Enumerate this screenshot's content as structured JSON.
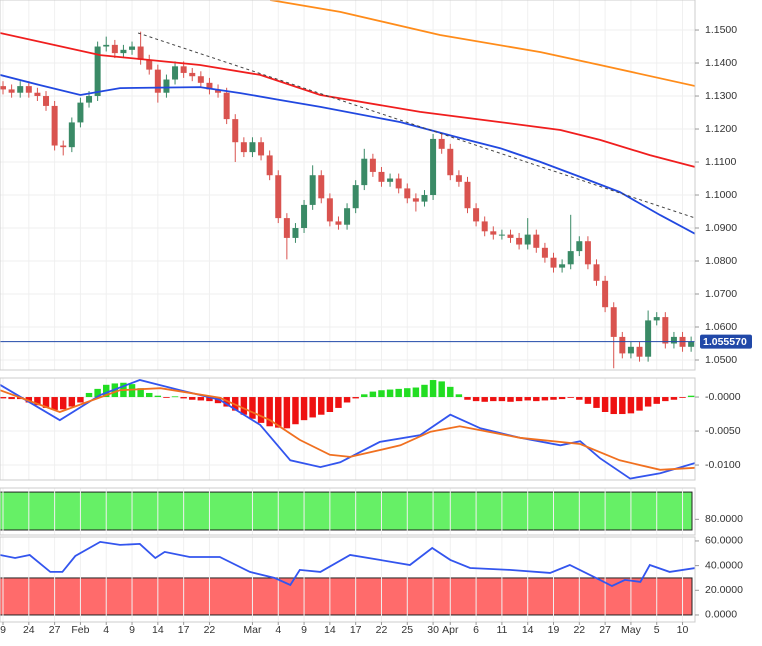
{
  "chart_data": [
    {
      "type": "candlestick",
      "xlim": [
        -0.35,
        80.45
      ],
      "ylim": [
        1.04697,
        1.1591
      ],
      "yticks": [
        {
          "value": 1.15,
          "label": "1.1500"
        },
        {
          "value": 1.14,
          "label": "1.1400"
        },
        {
          "value": 1.13,
          "label": "1.1300"
        },
        {
          "value": 1.12,
          "label": "1.1200"
        },
        {
          "value": 1.11,
          "label": "1.1100"
        },
        {
          "value": 1.1,
          "label": "1.1000"
        },
        {
          "value": 1.09,
          "label": "1.0900"
        },
        {
          "value": 1.08,
          "label": "1.0800"
        },
        {
          "value": 1.07,
          "label": "1.0700"
        },
        {
          "value": 1.06,
          "label": "1.0600"
        },
        {
          "value": 1.05,
          "label": "1.0500"
        }
      ],
      "grid": true,
      "up_color": "#3a8a66",
      "down_color": "#d9534f",
      "x": [
        0,
        1,
        2,
        3,
        4,
        5,
        6,
        7,
        8,
        9,
        10,
        11,
        12,
        13,
        14,
        15,
        16,
        17,
        18,
        19,
        20,
        21,
        22,
        23,
        24,
        25,
        26,
        27,
        28,
        29,
        30,
        31,
        32,
        33,
        34,
        35,
        36,
        37,
        38,
        39,
        40,
        41,
        42,
        43,
        44,
        45,
        46,
        47,
        48,
        49,
        50,
        51,
        52,
        53,
        54,
        55,
        56,
        57,
        58,
        59,
        60,
        61,
        62,
        63,
        64,
        65,
        66,
        67,
        68,
        69,
        70,
        71,
        72,
        73,
        74,
        75,
        76,
        77,
        78,
        79,
        80
      ],
      "open": [
        1.133,
        1.132,
        1.131,
        1.133,
        1.131,
        1.13,
        1.127,
        1.115,
        1.1145,
        1.122,
        1.128,
        1.13,
        1.145,
        1.1455,
        1.143,
        1.144,
        1.145,
        1.141,
        1.138,
        1.131,
        1.135,
        1.139,
        1.137,
        1.136,
        1.134,
        1.132,
        1.131,
        1.123,
        1.116,
        1.113,
        1.116,
        1.112,
        1.106,
        1.093,
        1.087,
        1.09,
        1.097,
        1.106,
        1.099,
        1.092,
        1.091,
        1.096,
        1.103,
        1.111,
        1.107,
        1.104,
        1.105,
        1.102,
        1.099,
        1.098,
        1.1,
        1.117,
        1.114,
        1.106,
        1.104,
        1.096,
        1.092,
        1.089,
        1.088,
        1.088,
        1.087,
        1.085,
        1.088,
        1.084,
        1.081,
        1.078,
        1.079,
        1.083,
        1.086,
        1.079,
        1.074,
        1.066,
        1.057,
        1.052,
        1.054,
        1.051,
        1.062,
        1.063,
        1.055,
        1.057,
        1.054
      ],
      "high": [
        1.1345,
        1.1335,
        1.1345,
        1.1345,
        1.1325,
        1.1315,
        1.1285,
        1.1165,
        1.1235,
        1.1295,
        1.1315,
        1.1465,
        1.148,
        1.147,
        1.1455,
        1.1465,
        1.1495,
        1.1425,
        1.1395,
        1.1365,
        1.1405,
        1.1405,
        1.1385,
        1.1375,
        1.1355,
        1.1335,
        1.1325,
        1.1245,
        1.1175,
        1.1175,
        1.1175,
        1.1135,
        1.1075,
        1.0945,
        1.0915,
        1.0985,
        1.109,
        1.1075,
        1.1005,
        1.0935,
        1.0975,
        1.1045,
        1.114,
        1.1125,
        1.1085,
        1.1065,
        1.1065,
        1.1035,
        1.1005,
        1.1015,
        1.1185,
        1.1185,
        1.1155,
        1.1075,
        1.1055,
        1.0975,
        1.0935,
        1.0905,
        1.0895,
        1.0895,
        1.0885,
        1.093,
        1.0895,
        1.0855,
        1.0825,
        1.0805,
        1.094,
        1.0875,
        1.0875,
        1.0805,
        1.0755,
        1.0675,
        1.0585,
        1.0555,
        1.0555,
        1.065,
        1.0645,
        1.0645,
        1.0585,
        1.0585,
        1.0571
      ],
      "low": [
        1.1305,
        1.1295,
        1.1295,
        1.1295,
        1.1285,
        1.1255,
        1.1135,
        1.112,
        1.113,
        1.1205,
        1.1265,
        1.1285,
        1.1435,
        1.1415,
        1.1415,
        1.1425,
        1.1395,
        1.1365,
        1.128,
        1.1295,
        1.1335,
        1.1355,
        1.1345,
        1.1325,
        1.1305,
        1.1295,
        1.1215,
        1.11,
        1.1115,
        1.1115,
        1.1105,
        1.1045,
        1.0915,
        1.0805,
        1.0855,
        1.0885,
        1.0955,
        1.0975,
        1.0905,
        1.0895,
        1.0895,
        1.0945,
        1.1015,
        1.1055,
        1.1025,
        1.1025,
        1.1005,
        1.0975,
        1.095,
        1.0965,
        1.0985,
        1.1125,
        1.1045,
        1.1025,
        1.0945,
        1.0905,
        1.0875,
        1.0865,
        1.0865,
        1.0855,
        1.0835,
        1.0835,
        1.0825,
        1.0795,
        1.0765,
        1.0765,
        1.0775,
        1.0815,
        1.0775,
        1.0725,
        1.0645,
        1.0475,
        1.0505,
        1.0505,
        1.0495,
        1.0495,
        1.0605,
        1.0535,
        1.0535,
        1.0525,
        1.0525
      ],
      "close": [
        1.132,
        1.131,
        1.133,
        1.131,
        1.13,
        1.127,
        1.115,
        1.1145,
        1.122,
        1.128,
        1.13,
        1.145,
        1.1455,
        1.143,
        1.144,
        1.145,
        1.141,
        1.138,
        1.131,
        1.135,
        1.139,
        1.137,
        1.136,
        1.134,
        1.132,
        1.131,
        1.123,
        1.116,
        1.113,
        1.116,
        1.112,
        1.106,
        1.093,
        1.087,
        1.09,
        1.097,
        1.106,
        1.099,
        1.092,
        1.091,
        1.096,
        1.103,
        1.111,
        1.107,
        1.104,
        1.105,
        1.102,
        1.099,
        1.098,
        1.1,
        1.117,
        1.114,
        1.106,
        1.104,
        1.096,
        1.092,
        1.089,
        1.088,
        1.088,
        1.087,
        1.085,
        1.088,
        1.084,
        1.081,
        1.078,
        1.079,
        1.083,
        1.086,
        1.079,
        1.074,
        1.066,
        1.057,
        1.052,
        1.054,
        1.051,
        1.062,
        1.063,
        1.055,
        1.057,
        1.054,
        1.0556
      ],
      "series": [
        {
          "color": "#f01e1e",
          "x": [
            -0.35,
            11.3,
            22.9,
            29.9,
            36.9,
            48.5,
            57.8,
            64.8,
            69.4,
            75.2,
            80.5
          ],
          "values": [
            1.1491,
            1.1424,
            1.1394,
            1.1364,
            1.1303,
            1.1252,
            1.1221,
            1.1197,
            1.1167,
            1.1121,
            1.1085
          ]
        },
        {
          "color": "#2148e0",
          "x": [
            -0.35,
            4.3,
            9,
            13.6,
            22.9,
            27.6,
            32.2,
            36.9,
            46.2,
            53.1,
            57.8,
            62.5,
            67.1,
            71.7,
            76.4,
            80.5
          ],
          "values": [
            1.1364,
            1.1333,
            1.1303,
            1.1324,
            1.1327,
            1.1309,
            1.1288,
            1.1267,
            1.1221,
            1.1173,
            1.1142,
            1.11,
            1.1055,
            1.1009,
            1.0939,
            1.0882
          ]
        },
        {
          "color": "#ff8c1a",
          "x": [
            31.05,
            39.2,
            50.8,
            62.5,
            69.4,
            80.5
          ],
          "values": [
            1.1591,
            1.1555,
            1.1485,
            1.1433,
            1.1394,
            1.133
          ]
        },
        {
          "color": "#444444",
          "dash": true,
          "x": [
            15.7,
            80.5
          ],
          "values": [
            1.1491,
            1.093
          ]
        }
      ],
      "last_price": {
        "value": 1.05557,
        "label": "1.055570",
        "color": "#2148a8"
      }
    },
    {
      "type": "macd",
      "xlim": [
        -0.35,
        80.45
      ],
      "ylim": [
        -0.0122,
        0.0028
      ],
      "yticks": [
        {
          "value": 0,
          "label": "-0.0000"
        },
        {
          "value": -0.005,
          "label": "-0.0050"
        },
        {
          "value": -0.01,
          "label": "-0.0100"
        }
      ],
      "grid": true,
      "positive_color": "#22dd22",
      "negative_color": "#ee1111",
      "histogram": [
        -0.0002,
        -0.0003,
        -0.0003,
        -0.0008,
        -0.0012,
        -0.0016,
        -0.0019,
        -0.0018,
        -0.0014,
        -0.0008,
        0.0006,
        0.0012,
        0.0018,
        0.002,
        0.0021,
        0.0019,
        0.0013,
        0.0006,
        0.0002,
        -0.0001,
        0.0001,
        -0.0002,
        -0.0004,
        -0.0005,
        -0.0006,
        -0.0009,
        -0.0014,
        -0.002,
        -0.0026,
        -0.0032,
        -0.0038,
        -0.0043,
        -0.0045,
        -0.0046,
        -0.004,
        -0.0034,
        -0.003,
        -0.0026,
        -0.0022,
        -0.0016,
        -0.0008,
        -0.0002,
        0.0004,
        0.0008,
        0.001,
        0.0011,
        0.0012,
        0.0013,
        0.0014,
        0.0018,
        0.0025,
        0.0023,
        0.0015,
        0.0004,
        -0.0004,
        -0.0006,
        -0.0007,
        -0.0006,
        -0.0006,
        -0.0007,
        -0.0006,
        -0.0005,
        -0.0006,
        -0.0005,
        -0.0004,
        -0.0003,
        -0.0001,
        -0.0004,
        -0.001,
        -0.0016,
        -0.0022,
        -0.0025,
        -0.0025,
        -0.0024,
        -0.002,
        -0.0014,
        -0.001,
        -0.0006,
        -0.0004,
        -0.0001,
        0.0002
      ],
      "series": [
        {
          "color": "#3355ee",
          "x": [
            -0.35,
            6.6,
            11.3,
            15.9,
            20.6,
            25.2,
            29.9,
            33.4,
            36.9,
            39.2,
            43.8,
            48.5,
            52,
            55.5,
            60.1,
            64.8,
            67.1,
            69.4,
            72.9,
            76.4,
            80.5
          ],
          "values": [
            0.0018,
            -0.0034,
            0.0003,
            0.0025,
            0.001,
            -0.0004,
            -0.0041,
            -0.0093,
            -0.0103,
            -0.0096,
            -0.0066,
            -0.0056,
            -0.0026,
            -0.0046,
            -0.006,
            -0.0071,
            -0.0065,
            -0.009,
            -0.012,
            -0.0112,
            -0.0097
          ]
        },
        {
          "color": "#f07020",
          "x": [
            -0.35,
            6.6,
            13.6,
            18.3,
            25.2,
            31.05,
            34.5,
            38,
            40.35,
            46.2,
            49.7,
            53.1,
            60.1,
            67.1,
            71.7,
            76.4,
            80.5
          ],
          "values": [
            0.001,
            -0.0022,
            0.001,
            0.0013,
            -0.0001,
            -0.0034,
            -0.0063,
            -0.0085,
            -0.0088,
            -0.0071,
            -0.0051,
            -0.0043,
            -0.006,
            -0.0069,
            -0.0093,
            -0.0107,
            -0.0104
          ]
        }
      ]
    },
    {
      "type": "band",
      "xlim": [
        -0.35,
        80.45
      ],
      "ylim": [
        70,
        100
      ],
      "yticks": [
        {
          "value": 80,
          "label": "80.0000"
        }
      ],
      "bands": [
        {
          "range": [
            73.2,
            97.4
          ],
          "color": "#66f066"
        }
      ]
    },
    {
      "type": "line",
      "xlim": [
        -0.35,
        80.45
      ],
      "ylim": [
        -5.7,
        63.2
      ],
      "yticks": [
        {
          "value": 60,
          "label": "60.0000"
        },
        {
          "value": 40,
          "label": "40.0000"
        },
        {
          "value": 20,
          "label": "20.0000"
        },
        {
          "value": 0,
          "label": "0.0000"
        }
      ],
      "bands": [
        {
          "range": [
            0,
            30
          ],
          "color": "#ff6b6b"
        }
      ],
      "series": [
        {
          "color": "#3355ee",
          "x": [
            -0.35,
            1.4,
            3.1,
            5.5,
            6.9,
            8.4,
            11.3,
            13.6,
            15.9,
            17.7,
            18.8,
            21.7,
            25.2,
            28.7,
            31.6,
            33.4,
            34.5,
            36.9,
            40.35,
            43.8,
            47.3,
            49.9,
            52,
            54.3,
            58.9,
            63.6,
            65.9,
            69.4,
            70.8,
            72.3,
            74.1,
            75.2,
            77.5,
            80.5
          ],
          "values": [
            48.6,
            46.2,
            48.6,
            34.9,
            34.9,
            47.8,
            59.2,
            56.8,
            57.6,
            46.2,
            51.1,
            47,
            47,
            34.9,
            30,
            24.3,
            36.5,
            34.9,
            48.6,
            44.6,
            40.5,
            54.3,
            44.6,
            38.1,
            36.5,
            34.1,
            40.5,
            28.4,
            23.5,
            28.4,
            26.8,
            40.5,
            34.9,
            38.1
          ]
        }
      ],
      "xticks": [
        {
          "value": 0,
          "label": "9"
        },
        {
          "value": 3,
          "label": "24"
        },
        {
          "value": 6,
          "label": "27"
        },
        {
          "value": 9,
          "label": "Feb"
        },
        {
          "value": 12,
          "label": "4"
        },
        {
          "value": 15,
          "label": "9"
        },
        {
          "value": 18,
          "label": "14"
        },
        {
          "value": 21,
          "label": "17"
        },
        {
          "value": 24,
          "label": "22"
        },
        {
          "value": 29,
          "label": "Mar"
        },
        {
          "value": 32,
          "label": "4"
        },
        {
          "value": 35,
          "label": "9"
        },
        {
          "value": 38,
          "label": "14"
        },
        {
          "value": 41,
          "label": "17"
        },
        {
          "value": 44,
          "label": "22"
        },
        {
          "value": 47,
          "label": "25"
        },
        {
          "value": 50,
          "label": "30"
        },
        {
          "value": 52,
          "label": "Apr"
        },
        {
          "value": 55,
          "label": "6"
        },
        {
          "value": 58,
          "label": "11"
        },
        {
          "value": 61,
          "label": "14"
        },
        {
          "value": 64,
          "label": "19"
        },
        {
          "value": 67,
          "label": "22"
        },
        {
          "value": 70,
          "label": "27"
        },
        {
          "value": 73,
          "label": "May"
        },
        {
          "value": 76,
          "label": "5"
        },
        {
          "value": 79,
          "label": "10"
        }
      ]
    }
  ]
}
